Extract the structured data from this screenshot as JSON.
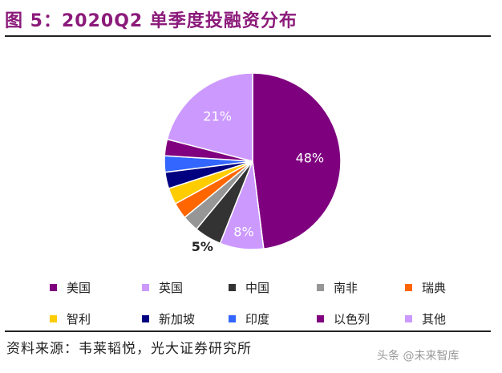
{
  "header": {
    "title": "图 5：2020Q2 单季度投融资分布"
  },
  "footer": {
    "source": "资料来源：韦莱韬悦，光大证券研究所",
    "watermark": "头条 @未来智库"
  },
  "chart_data": {
    "type": "pie",
    "title": "",
    "slices": [
      {
        "label": "美国",
        "value": 48,
        "color": "#7f007f",
        "data_label": "48%"
      },
      {
        "label": "英国",
        "value": 8,
        "color": "#cc99ff",
        "data_label": "8%"
      },
      {
        "label": "中国",
        "value": 5,
        "color": "#333333",
        "data_label": "5%"
      },
      {
        "label": "南非",
        "value": 3,
        "color": "#969696",
        "data_label": ""
      },
      {
        "label": "瑞典",
        "value": 3,
        "color": "#ff6600",
        "data_label": ""
      },
      {
        "label": "智利",
        "value": 3,
        "color": "#ffcc00",
        "data_label": ""
      },
      {
        "label": "新加坡",
        "value": 3,
        "color": "#000080",
        "data_label": ""
      },
      {
        "label": "印度",
        "value": 3,
        "color": "#3366ff",
        "data_label": ""
      },
      {
        "label": "以色列",
        "value": 3,
        "color": "#800080",
        "data_label": ""
      },
      {
        "label": "其他",
        "value": 21,
        "color": "#cc99ff",
        "data_label": "21%"
      }
    ],
    "legend_position": "bottom"
  }
}
